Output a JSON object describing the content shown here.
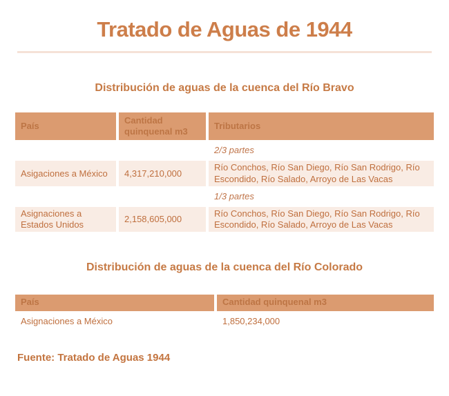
{
  "page": {
    "title": "Tratado de Aguas de 1944",
    "footer": "Fuente: Tratado de Aguas 1944"
  },
  "colors": {
    "title_text": "#cd7e4a",
    "heading_text": "#c67a45",
    "table_header_bg": "#db9b70",
    "table_header_text": "#bd7545",
    "body_text": "#bf6f3e",
    "row_highlight_bg": "#f9ece4",
    "divider": "#f5e2d7",
    "page_bg": "#ffffff"
  },
  "bravo": {
    "heading": "Distribución de aguas de la cuenca del Río Bravo",
    "columns": [
      "País",
      "Cantidad quinquenal m3",
      "Tributarios"
    ],
    "rows": [
      {
        "note": "2/3 partes"
      },
      {
        "pais": "Asigaciones a México",
        "cantidad": "4,317,210,000",
        "tributarios": "Río Conchos, Río San Diego, Río San Rodrigo, Río Escondido, Río Salado, Arroyo de Las Vacas"
      },
      {
        "note": "1/3 partes"
      },
      {
        "pais": "Asignaciones a Estados Unidos",
        "cantidad": "2,158,605,000",
        "tributarios": "Río Conchos, Río San Diego, Río San Rodrigo, Río Escondido, Río Salado, Arroyo de Las Vacas"
      }
    ]
  },
  "colorado": {
    "heading": "Distribución de aguas de la cuenca del Río Colorado",
    "columns": [
      "País",
      "Cantidad quinquenal m3"
    ],
    "rows": [
      {
        "pais": "Asignaciones a México",
        "cantidad": "1,850,234,000"
      }
    ]
  }
}
